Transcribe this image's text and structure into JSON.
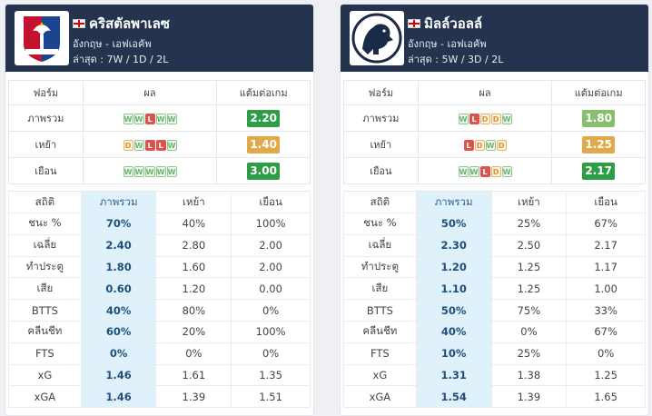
{
  "teams": [
    {
      "name": "คริสตัลพาเลซ",
      "league": "อังกฤษ - เอฟเอคัพ",
      "recent": "ล่าสุด : 7W / 1D / 2L",
      "form_headers": [
        "ฟอร์ม",
        "ผล",
        "แต้มต่อเกม"
      ],
      "forms": [
        {
          "label": "ภาพรวม",
          "results": [
            "W",
            "W",
            "L",
            "W",
            "W"
          ],
          "ppg": "2.20",
          "ppg_color": "#2e9e46"
        },
        {
          "label": "เหย้า",
          "results": [
            "D",
            "W",
            "L",
            "L",
            "W"
          ],
          "ppg": "1.40",
          "ppg_color": "#e2a94a"
        },
        {
          "label": "เยือน",
          "results": [
            "W",
            "W",
            "W",
            "W",
            "W"
          ],
          "ppg": "3.00",
          "ppg_color": "#2e9e46"
        }
      ],
      "stat_headers": [
        "สถิติ",
        "ภาพรวม",
        "เหย้า",
        "เยือน"
      ],
      "stats": [
        {
          "label": "ชนะ %",
          "overall": "70%",
          "home": "40%",
          "away": "100%"
        },
        {
          "label": "เฉลี่ย",
          "overall": "2.40",
          "home": "2.80",
          "away": "2.00"
        },
        {
          "label": "ทำประตู",
          "overall": "1.80",
          "home": "1.60",
          "away": "2.00"
        },
        {
          "label": "เสีย",
          "overall": "0.60",
          "home": "1.20",
          "away": "0.00"
        },
        {
          "label": "BTTS",
          "overall": "40%",
          "home": "80%",
          "away": "0%"
        },
        {
          "label": "คลีนชีท",
          "overall": "60%",
          "home": "20%",
          "away": "100%"
        },
        {
          "label": "FTS",
          "overall": "0%",
          "home": "0%",
          "away": "0%"
        },
        {
          "label": "xG",
          "overall": "1.46",
          "home": "1.61",
          "away": "1.35"
        },
        {
          "label": "xGA",
          "overall": "1.46",
          "home": "1.39",
          "away": "1.51"
        }
      ]
    },
    {
      "name": "มิลล์วอลล์",
      "league": "อังกฤษ - เอฟเอคัพ",
      "recent": "ล่าสุด : 5W / 3D / 2L",
      "form_headers": [
        "ฟอร์ม",
        "ผล",
        "แต้มต่อเกม"
      ],
      "forms": [
        {
          "label": "ภาพรวม",
          "results": [
            "W",
            "L",
            "D",
            "D",
            "W"
          ],
          "ppg": "1.80",
          "ppg_color": "#86c06f"
        },
        {
          "label": "เหย้า",
          "results": [
            "L",
            "D",
            "W",
            "D"
          ],
          "ppg": "1.25",
          "ppg_color": "#e2a94a"
        },
        {
          "label": "เยือน",
          "results": [
            "W",
            "W",
            "L",
            "D",
            "W"
          ],
          "ppg": "2.17",
          "ppg_color": "#2e9e46"
        }
      ],
      "stat_headers": [
        "สถิติ",
        "ภาพรวม",
        "เหย้า",
        "เยือน"
      ],
      "stats": [
        {
          "label": "ชนะ %",
          "overall": "50%",
          "home": "25%",
          "away": "67%"
        },
        {
          "label": "เฉลี่ย",
          "overall": "2.30",
          "home": "2.50",
          "away": "2.17"
        },
        {
          "label": "ทำประตู",
          "overall": "1.20",
          "home": "1.25",
          "away": "1.17"
        },
        {
          "label": "เสีย",
          "overall": "1.10",
          "home": "1.25",
          "away": "1.00"
        },
        {
          "label": "BTTS",
          "overall": "50%",
          "home": "75%",
          "away": "33%"
        },
        {
          "label": "คลีนชีท",
          "overall": "40%",
          "home": "0%",
          "away": "67%"
        },
        {
          "label": "FTS",
          "overall": "10%",
          "home": "25%",
          "away": "0%"
        },
        {
          "label": "xG",
          "overall": "1.31",
          "home": "1.38",
          "away": "1.25"
        },
        {
          "label": "xGA",
          "overall": "1.54",
          "home": "1.39",
          "away": "1.65"
        }
      ]
    }
  ],
  "icons": {
    "left_crest": "crystal-palace-crest-icon",
    "right_crest": "millwall-lion-crest-icon",
    "flag": "england-flag-icon"
  }
}
